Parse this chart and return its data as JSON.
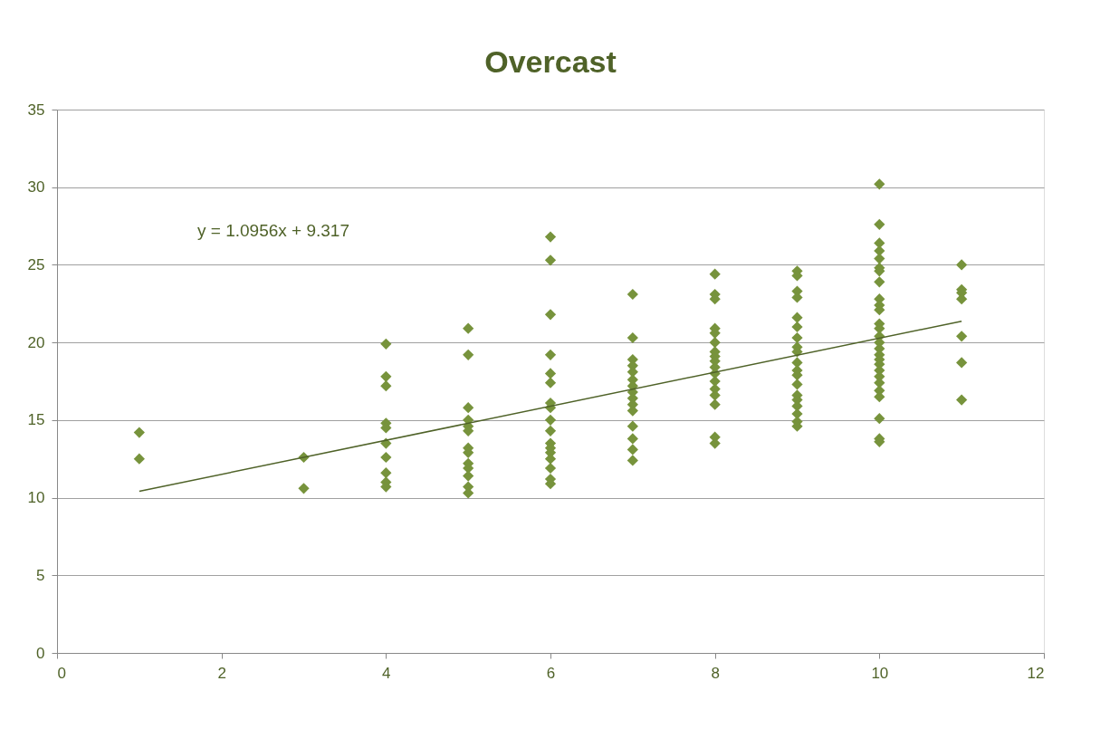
{
  "chart_data": {
    "type": "scatter",
    "title": "Overcast",
    "xlim": [
      0,
      12
    ],
    "xticks": [
      0,
      2,
      4,
      6,
      8,
      10,
      12
    ],
    "ylim": [
      0,
      35
    ],
    "yticks": [
      0,
      5,
      10,
      15,
      20,
      25,
      30,
      35
    ],
    "grid": "y",
    "marker": "diamond",
    "annotations": [
      "y = 1.0956x + 9.317"
    ],
    "series": [
      {
        "color": "#77933c",
        "x": [
          1,
          1,
          3,
          3,
          4,
          4,
          4,
          4,
          4,
          4,
          4,
          4,
          4,
          4,
          5,
          5,
          5,
          5,
          5,
          5,
          5,
          5,
          5,
          5,
          5,
          5,
          5,
          6,
          6,
          6,
          6,
          6,
          6,
          6,
          6,
          6,
          6,
          6,
          6,
          6,
          6,
          6,
          6,
          6,
          7,
          7,
          7,
          7,
          7,
          7,
          7,
          7,
          7,
          7,
          7,
          7,
          7,
          7,
          7,
          8,
          8,
          8,
          8,
          8,
          8,
          8,
          8,
          8,
          8,
          8,
          8,
          8,
          8,
          8,
          8,
          8,
          9,
          9,
          9,
          9,
          9,
          9,
          9,
          9,
          9,
          9,
          9,
          9,
          9,
          9,
          9,
          9,
          9,
          9,
          9,
          10,
          10,
          10,
          10,
          10,
          10,
          10,
          10,
          10,
          10,
          10,
          10,
          10,
          10,
          10,
          10,
          10,
          10,
          10,
          10,
          10,
          10,
          10,
          10,
          10,
          10,
          10,
          11,
          11,
          11,
          11,
          11,
          11,
          11
        ],
        "values": [
          14.2,
          12.5,
          12.6,
          10.6,
          19.9,
          17.8,
          17.2,
          14.8,
          14.5,
          13.5,
          12.6,
          11.6,
          11.0,
          10.7,
          20.9,
          19.2,
          15.8,
          15.0,
          14.6,
          14.3,
          13.2,
          12.9,
          12.2,
          11.9,
          11.4,
          10.7,
          10.3,
          26.8,
          25.3,
          21.8,
          19.2,
          18.0,
          17.4,
          16.1,
          15.8,
          15.0,
          14.3,
          13.5,
          13.2,
          12.9,
          12.5,
          11.9,
          11.2,
          10.9,
          23.1,
          20.3,
          18.9,
          18.5,
          18.1,
          17.6,
          17.2,
          16.8,
          16.4,
          16.0,
          15.6,
          14.6,
          13.8,
          13.1,
          12.4,
          24.4,
          23.1,
          22.8,
          20.9,
          20.6,
          20.0,
          19.4,
          19.1,
          18.8,
          18.4,
          18.0,
          17.5,
          17.0,
          16.6,
          16.0,
          13.9,
          13.5,
          24.6,
          24.3,
          23.3,
          22.9,
          21.6,
          21.0,
          20.3,
          19.7,
          19.4,
          18.7,
          18.2,
          17.9,
          17.3,
          16.6,
          16.3,
          15.9,
          15.4,
          14.9,
          14.6,
          30.2,
          27.6,
          26.4,
          25.9,
          25.4,
          24.8,
          24.6,
          23.9,
          22.8,
          22.4,
          22.1,
          21.2,
          20.9,
          20.4,
          20.0,
          19.6,
          19.2,
          18.9,
          18.6,
          18.2,
          17.8,
          17.4,
          16.9,
          16.5,
          15.1,
          13.8,
          13.6,
          25.0,
          23.4,
          23.2,
          22.8,
          20.4,
          18.7,
          16.3
        ]
      },
      {
        "type": "line",
        "marker": "none",
        "line_style": "solid",
        "color": "#4f6228",
        "x": [
          1,
          11
        ],
        "values": [
          10.41,
          21.37
        ]
      }
    ]
  }
}
